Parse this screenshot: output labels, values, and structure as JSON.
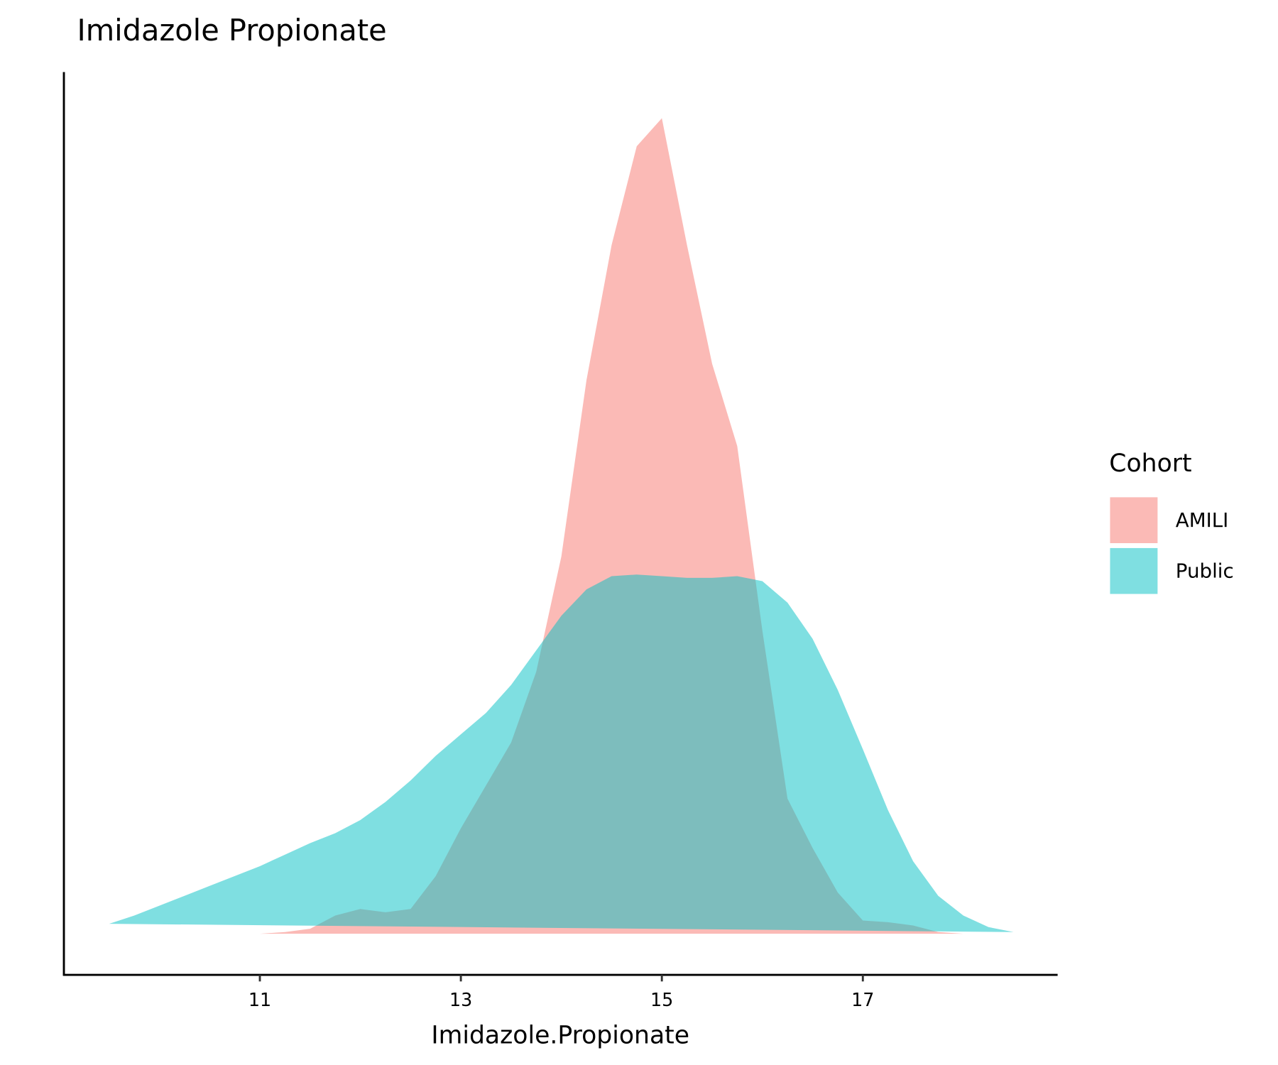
{
  "chart_data": {
    "type": "density",
    "title": "Imidazole Propionate",
    "x_label": "Imidazole.Propionate",
    "legend_title": "Cohort",
    "legend_position": "right",
    "xlim": [
      9.05,
      18.93
    ],
    "ylim": [
      -0.025,
      0.523
    ],
    "xticks": [
      11,
      13,
      15,
      17
    ],
    "x": [
      9.5,
      9.75,
      10.0,
      10.25,
      10.5,
      10.75,
      11.0,
      11.25,
      11.5,
      11.75,
      12.0,
      12.25,
      12.5,
      12.75,
      13.0,
      13.25,
      13.5,
      13.75,
      14.0,
      14.25,
      14.5,
      14.75,
      15.0,
      15.25,
      15.5,
      15.75,
      16.0,
      16.25,
      16.5,
      16.75,
      17.0,
      17.25,
      17.5,
      17.75,
      18.0,
      18.25,
      18.5
    ],
    "series": [
      {
        "name": "AMILI",
        "color": "#F8766D",
        "opacity": 0.5,
        "values": [
          0,
          0,
          0,
          0,
          0,
          0,
          0,
          0.001,
          0.003,
          0.011,
          0.015,
          0.013,
          0.015,
          0.035,
          0.064,
          0.09,
          0.116,
          0.159,
          0.229,
          0.336,
          0.418,
          0.478,
          0.495,
          0.418,
          0.346,
          0.296,
          0.184,
          0.082,
          0.052,
          0.025,
          0.008,
          0.007,
          0.005,
          0.001,
          0,
          0,
          0
        ]
      },
      {
        "name": "Public",
        "color": "#00BFC4",
        "opacity": 0.5,
        "values": [
          0.006,
          0.011,
          0.017,
          0.023,
          0.029,
          0.035,
          0.041,
          0.048,
          0.055,
          0.061,
          0.069,
          0.08,
          0.093,
          0.108,
          0.121,
          0.134,
          0.151,
          0.172,
          0.193,
          0.209,
          0.217,
          0.218,
          0.217,
          0.216,
          0.216,
          0.217,
          0.214,
          0.201,
          0.179,
          0.148,
          0.112,
          0.075,
          0.044,
          0.023,
          0.011,
          0.004,
          0.001
        ]
      }
    ]
  }
}
